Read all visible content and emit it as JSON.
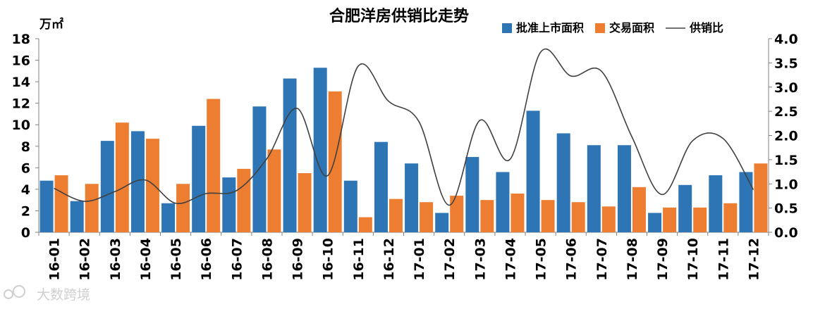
{
  "chart_data": {
    "type": "bar",
    "title": "合肥洋房供销比走势",
    "y_left_unit": "万㎡",
    "ylim_left": [
      0,
      18
    ],
    "ylim_right": [
      0,
      4
    ],
    "y_left_ticks": [
      "0",
      "2",
      "4",
      "6",
      "8",
      "10",
      "12",
      "14",
      "16",
      "18"
    ],
    "y_right_ticks": [
      "0.0",
      "0.5",
      "1.0",
      "1.5",
      "2.0",
      "2.5",
      "3.0",
      "3.5",
      "4.0"
    ],
    "categories": [
      "16-01",
      "16-02",
      "16-03",
      "16-04",
      "16-05",
      "16-06",
      "16-07",
      "16-08",
      "16-09",
      "16-10",
      "16-11",
      "16-12",
      "17-01",
      "17-02",
      "17-03",
      "17-04",
      "17-05",
      "17-06",
      "17-07",
      "17-08",
      "17-09",
      "17-10",
      "17-11",
      "17-12"
    ],
    "series": [
      {
        "name": "批准上市面积",
        "type": "bar",
        "axis": "left",
        "color": "#2e75b6",
        "values": [
          4.8,
          2.9,
          8.5,
          9.4,
          2.7,
          9.9,
          5.1,
          11.7,
          14.3,
          15.3,
          4.8,
          8.4,
          6.4,
          1.8,
          7.0,
          5.6,
          11.3,
          9.2,
          8.1,
          8.1,
          1.8,
          4.4,
          5.3,
          5.6
        ]
      },
      {
        "name": "交易面积",
        "type": "bar",
        "axis": "left",
        "color": "#ed7d31",
        "values": [
          5.3,
          4.5,
          10.2,
          8.7,
          4.5,
          12.4,
          5.9,
          7.7,
          5.5,
          13.1,
          1.4,
          3.1,
          2.8,
          3.4,
          3.0,
          3.6,
          3.0,
          2.8,
          2.4,
          4.2,
          2.3,
          2.3,
          2.7,
          6.4
        ]
      },
      {
        "name": "供销比",
        "type": "line",
        "axis": "right",
        "color": "#404040",
        "values": [
          0.91,
          0.64,
          0.84,
          1.08,
          0.6,
          0.8,
          0.86,
          1.52,
          2.56,
          1.17,
          3.43,
          2.71,
          2.29,
          0.56,
          2.31,
          1.51,
          3.72,
          3.23,
          3.33,
          1.98,
          0.78,
          1.89,
          1.94,
          0.88
        ]
      }
    ],
    "legend_position": "top-right",
    "grid": false
  },
  "watermark": "大数跨境",
  "colors": {
    "bar1": "#2e75b6",
    "bar2": "#ed7d31",
    "line": "#404040",
    "axis": "#808080"
  }
}
